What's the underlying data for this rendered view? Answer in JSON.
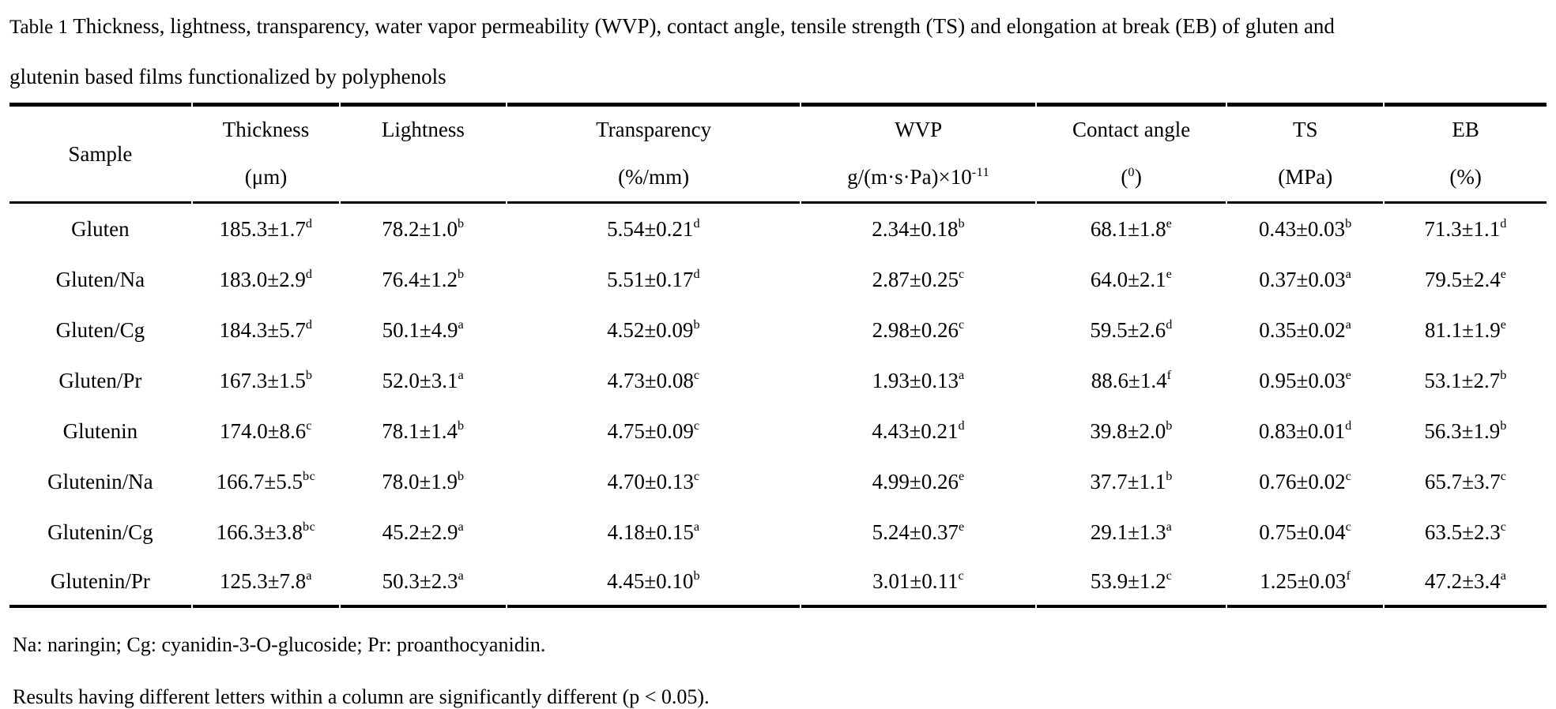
{
  "caption": {
    "label": "Table 1",
    "line1_rest": "Thickness, lightness, transparency, water vapor permeability (WVP), contact angle, tensile strength (TS) and elongation at break (EB) of gluten and",
    "line2": "glutenin based films functionalized by polyphenols"
  },
  "table": {
    "columns": [
      {
        "key": "sample",
        "label": "Sample",
        "unit_base": "",
        "unit_sup": "",
        "unit_post": ""
      },
      {
        "key": "thickness",
        "label": "Thickness",
        "unit_base": "(μm)",
        "unit_sup": "",
        "unit_post": ""
      },
      {
        "key": "lightness",
        "label": "Lightness",
        "unit_base": "",
        "unit_sup": "",
        "unit_post": ""
      },
      {
        "key": "transparency",
        "label": "Transparency",
        "unit_base": "(%/mm)",
        "unit_sup": "",
        "unit_post": ""
      },
      {
        "key": "wvp",
        "label": "WVP",
        "unit_base": "g/(m·s·Pa)×10",
        "unit_sup": "-11",
        "unit_post": ""
      },
      {
        "key": "contact_angle",
        "label": "Contact angle",
        "unit_base": "(",
        "unit_sup": "0",
        "unit_post": ")"
      },
      {
        "key": "ts",
        "label": "TS",
        "unit_base": "(MPa)",
        "unit_sup": "",
        "unit_post": ""
      },
      {
        "key": "eb",
        "label": "EB",
        "unit_base": "(%)",
        "unit_sup": "",
        "unit_post": ""
      }
    ],
    "rows": [
      {
        "sample": "Gluten",
        "cells": [
          {
            "v": "185.3±1.7",
            "s": "d"
          },
          {
            "v": "78.2±1.0",
            "s": "b"
          },
          {
            "v": "5.54±0.21",
            "s": "d"
          },
          {
            "v": "2.34±0.18",
            "s": "b"
          },
          {
            "v": "68.1±1.8",
            "s": "e"
          },
          {
            "v": "0.43±0.03",
            "s": "b"
          },
          {
            "v": "71.3±1.1",
            "s": "d"
          }
        ]
      },
      {
        "sample": "Gluten/Na",
        "cells": [
          {
            "v": "183.0±2.9",
            "s": "d"
          },
          {
            "v": "76.4±1.2",
            "s": "b"
          },
          {
            "v": "5.51±0.17",
            "s": "d"
          },
          {
            "v": "2.87±0.25",
            "s": "c"
          },
          {
            "v": "64.0±2.1",
            "s": "e"
          },
          {
            "v": "0.37±0.03",
            "s": "a"
          },
          {
            "v": "79.5±2.4",
            "s": "e"
          }
        ]
      },
      {
        "sample": "Gluten/Cg",
        "cells": [
          {
            "v": "184.3±5.7",
            "s": "d"
          },
          {
            "v": "50.1±4.9",
            "s": "a"
          },
          {
            "v": "4.52±0.09",
            "s": "b"
          },
          {
            "v": "2.98±0.26",
            "s": "c"
          },
          {
            "v": "59.5±2.6",
            "s": "d"
          },
          {
            "v": "0.35±0.02",
            "s": "a"
          },
          {
            "v": "81.1±1.9",
            "s": "e"
          }
        ]
      },
      {
        "sample": "Gluten/Pr",
        "cells": [
          {
            "v": "167.3±1.5",
            "s": "b"
          },
          {
            "v": "52.0±3.1",
            "s": "a"
          },
          {
            "v": "4.73±0.08",
            "s": "c"
          },
          {
            "v": "1.93±0.13",
            "s": "a"
          },
          {
            "v": "88.6±1.4",
            "s": "f"
          },
          {
            "v": "0.95±0.03",
            "s": "e"
          },
          {
            "v": "53.1±2.7",
            "s": "b"
          }
        ]
      },
      {
        "sample": "Glutenin",
        "cells": [
          {
            "v": "174.0±8.6",
            "s": "c"
          },
          {
            "v": "78.1±1.4",
            "s": "b"
          },
          {
            "v": "4.75±0.09",
            "s": "c"
          },
          {
            "v": "4.43±0.21",
            "s": "d"
          },
          {
            "v": "39.8±2.0",
            "s": "b"
          },
          {
            "v": "0.83±0.01",
            "s": "d"
          },
          {
            "v": "56.3±1.9",
            "s": "b"
          }
        ]
      },
      {
        "sample": "Glutenin/Na",
        "cells": [
          {
            "v": "166.7±5.5",
            "s": "bc"
          },
          {
            "v": "78.0±1.9",
            "s": "b"
          },
          {
            "v": "4.70±0.13",
            "s": "c"
          },
          {
            "v": "4.99±0.26",
            "s": "e"
          },
          {
            "v": "37.7±1.1",
            "s": "b"
          },
          {
            "v": "0.76±0.02",
            "s": "c"
          },
          {
            "v": "65.7±3.7",
            "s": "c"
          }
        ]
      },
      {
        "sample": "Glutenin/Cg",
        "cells": [
          {
            "v": "166.3±3.8",
            "s": "bc"
          },
          {
            "v": "45.2±2.9",
            "s": "a"
          },
          {
            "v": "4.18±0.15",
            "s": "a"
          },
          {
            "v": "5.24±0.37",
            "s": "e"
          },
          {
            "v": "29.1±1.3",
            "s": "a"
          },
          {
            "v": "0.75±0.04",
            "s": "c"
          },
          {
            "v": "63.5±2.3",
            "s": "c"
          }
        ]
      },
      {
        "sample": "Glutenin/Pr",
        "cells": [
          {
            "v": "125.3±7.8",
            "s": "a"
          },
          {
            "v": "50.3±2.3",
            "s": "a"
          },
          {
            "v": "4.45±0.10",
            "s": "b"
          },
          {
            "v": "3.01±0.11",
            "s": "c"
          },
          {
            "v": "53.9±1.2",
            "s": "c"
          },
          {
            "v": "1.25±0.03",
            "s": "f"
          },
          {
            "v": "47.2±3.4",
            "s": "a"
          }
        ]
      }
    ]
  },
  "footnotes": {
    "abbreviations": "Na: naringin; Cg: cyanidin-3-O-glucoside; Pr: proanthocyanidin.",
    "significance": "Results having different letters within a column are significantly different (p < 0.05)."
  }
}
